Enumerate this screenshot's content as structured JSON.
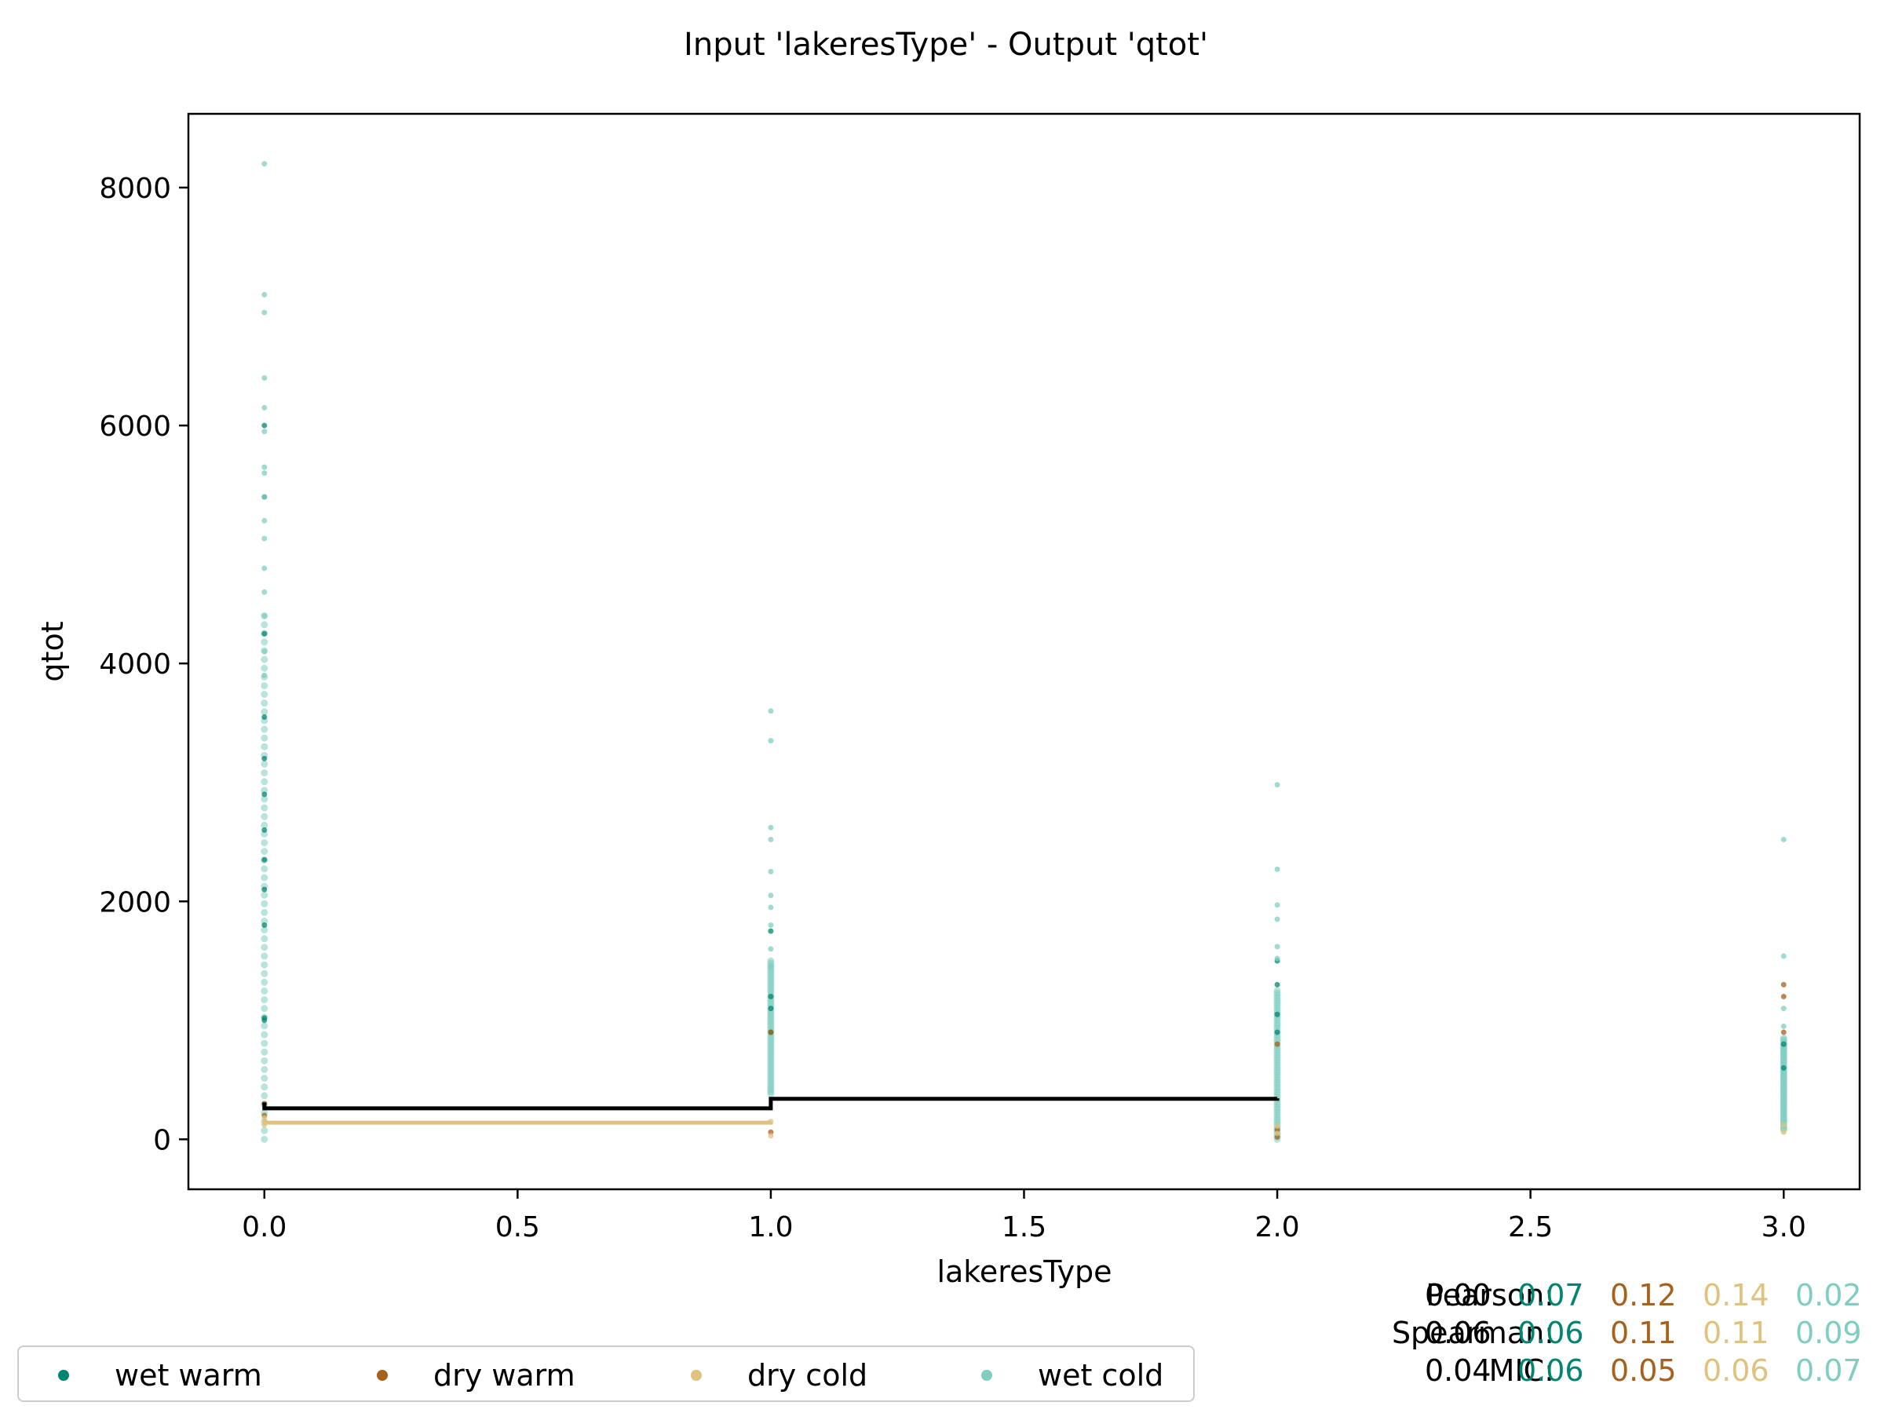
{
  "chart_data": {
    "type": "scatter",
    "title": "Input 'lakeresType' - Output 'qtot'",
    "xlabel": "lakeresType",
    "ylabel": "qtot",
    "xlim": [
      -0.15,
      3.15
    ],
    "ylim": [
      -420,
      8620
    ],
    "x_ticks": [
      "0.0",
      "0.5",
      "1.0",
      "1.5",
      "2.0",
      "2.5",
      "3.0"
    ],
    "y_ticks": [
      "0",
      "2000",
      "4000",
      "6000",
      "8000"
    ],
    "grid": false,
    "legend_placement": "bottom-left, outside plot",
    "series": [
      {
        "name": "wet warm",
        "color": "#018571",
        "points": [
          {
            "x": 0,
            "y": 1000
          },
          {
            "x": 0,
            "y": 1020
          },
          {
            "x": 0,
            "y": 2350
          },
          {
            "x": 0,
            "y": 2600
          },
          {
            "x": 0,
            "y": 2900
          },
          {
            "x": 0,
            "y": 3200
          },
          {
            "x": 0,
            "y": 3550
          },
          {
            "x": 0,
            "y": 4250
          },
          {
            "x": 0,
            "y": 5400
          },
          {
            "x": 0,
            "y": 6000
          },
          {
            "x": 0,
            "y": 1800
          },
          {
            "x": 0,
            "y": 2100
          },
          {
            "x": 1,
            "y": 1750
          },
          {
            "x": 1,
            "y": 1200
          },
          {
            "x": 1,
            "y": 900
          },
          {
            "x": 1,
            "y": 1100
          },
          {
            "x": 2,
            "y": 1050
          },
          {
            "x": 2,
            "y": 900
          },
          {
            "x": 2,
            "y": 1300
          },
          {
            "x": 2,
            "y": 1500
          },
          {
            "x": 3,
            "y": 800
          },
          {
            "x": 3,
            "y": 600
          }
        ]
      },
      {
        "name": "dry warm",
        "color": "#a6611a",
        "points": [
          {
            "x": 0,
            "y": 200
          },
          {
            "x": 0,
            "y": 300
          },
          {
            "x": 1,
            "y": 60
          },
          {
            "x": 1,
            "y": 900
          },
          {
            "x": 2,
            "y": 20
          },
          {
            "x": 2,
            "y": 80
          },
          {
            "x": 2,
            "y": 800
          },
          {
            "x": 3,
            "y": 1200
          },
          {
            "x": 3,
            "y": 1300
          },
          {
            "x": 3,
            "y": 900
          }
        ]
      },
      {
        "name": "dry cold",
        "color": "#dfc27d",
        "points": [
          {
            "x": 0,
            "y": 120
          },
          {
            "x": 0,
            "y": 180
          },
          {
            "x": 1,
            "y": 30
          },
          {
            "x": 1,
            "y": 150
          },
          {
            "x": 2,
            "y": 50
          },
          {
            "x": 2,
            "y": 110
          },
          {
            "x": 3,
            "y": 60
          },
          {
            "x": 3,
            "y": 120
          }
        ]
      },
      {
        "name": "wet cold",
        "color": "#80cdc1",
        "points": [
          {
            "x": 0,
            "y": 8200
          },
          {
            "x": 0,
            "y": 7100
          },
          {
            "x": 0,
            "y": 6950
          },
          {
            "x": 0,
            "y": 6400
          },
          {
            "x": 0,
            "y": 6150
          },
          {
            "x": 0,
            "y": 5950
          },
          {
            "x": 0,
            "y": 5650
          },
          {
            "x": 0,
            "y": 5600
          },
          {
            "x": 0,
            "y": 5400
          },
          {
            "x": 0,
            "y": 5200
          },
          {
            "x": 0,
            "y": 5050
          },
          {
            "x": 0,
            "y": 4800
          },
          {
            "x": 0,
            "y": 4600
          },
          {
            "x": 0,
            "y": 4400
          },
          {
            "x": 0,
            "y": 4100
          },
          {
            "x": 0,
            "y": 3900
          },
          {
            "x": 1,
            "y": 3600
          },
          {
            "x": 1,
            "y": 3350
          },
          {
            "x": 1,
            "y": 2620
          },
          {
            "x": 1,
            "y": 2520
          },
          {
            "x": 1,
            "y": 2250
          },
          {
            "x": 1,
            "y": 2050
          },
          {
            "x": 1,
            "y": 1950
          },
          {
            "x": 1,
            "y": 1800
          },
          {
            "x": 1,
            "y": 1600
          },
          {
            "x": 1,
            "y": 1450
          },
          {
            "x": 2,
            "y": 2980
          },
          {
            "x": 2,
            "y": 2270
          },
          {
            "x": 2,
            "y": 1970
          },
          {
            "x": 2,
            "y": 1850
          },
          {
            "x": 2,
            "y": 1620
          },
          {
            "x": 2,
            "y": 1520
          },
          {
            "x": 3,
            "y": 2520
          },
          {
            "x": 3,
            "y": 1540
          },
          {
            "x": 3,
            "y": 1100
          },
          {
            "x": 3,
            "y": 950
          }
        ],
        "dense_ranges": [
          {
            "x": 0,
            "y": [
              0,
              4400
            ]
          },
          {
            "x": 1,
            "y": [
              380,
              1500
            ]
          },
          {
            "x": 2,
            "y": [
              0,
              1250
            ]
          },
          {
            "x": 3,
            "y": [
              80,
              850
            ]
          }
        ]
      }
    ],
    "step_lines": [
      {
        "color": "#000000",
        "points": [
          [
            0,
            310
          ],
          [
            0,
            260
          ],
          [
            1,
            260
          ],
          [
            1,
            340
          ],
          [
            2,
            340
          ],
          [
            2,
            345
          ]
        ]
      },
      {
        "color": "#dfc27d",
        "points": [
          [
            0,
            170
          ],
          [
            0,
            140
          ],
          [
            1,
            140
          ],
          [
            1,
            145
          ]
        ]
      }
    ],
    "statistics": {
      "colors": [
        "#000000",
        "#018571",
        "#a6611a",
        "#dfc27d",
        "#80cdc1"
      ],
      "rows": [
        {
          "label": "Pearson:",
          "values": [
            "0.00",
            "0.07",
            "0.12",
            "0.14",
            "0.02"
          ]
        },
        {
          "label": "Spearman:",
          "values": [
            "0.06",
            "0.06",
            "0.11",
            "0.11",
            "0.09"
          ]
        },
        {
          "label": "MIC:",
          "values": [
            "0.04",
            "0.06",
            "0.05",
            "0.06",
            "0.07"
          ]
        }
      ]
    }
  }
}
